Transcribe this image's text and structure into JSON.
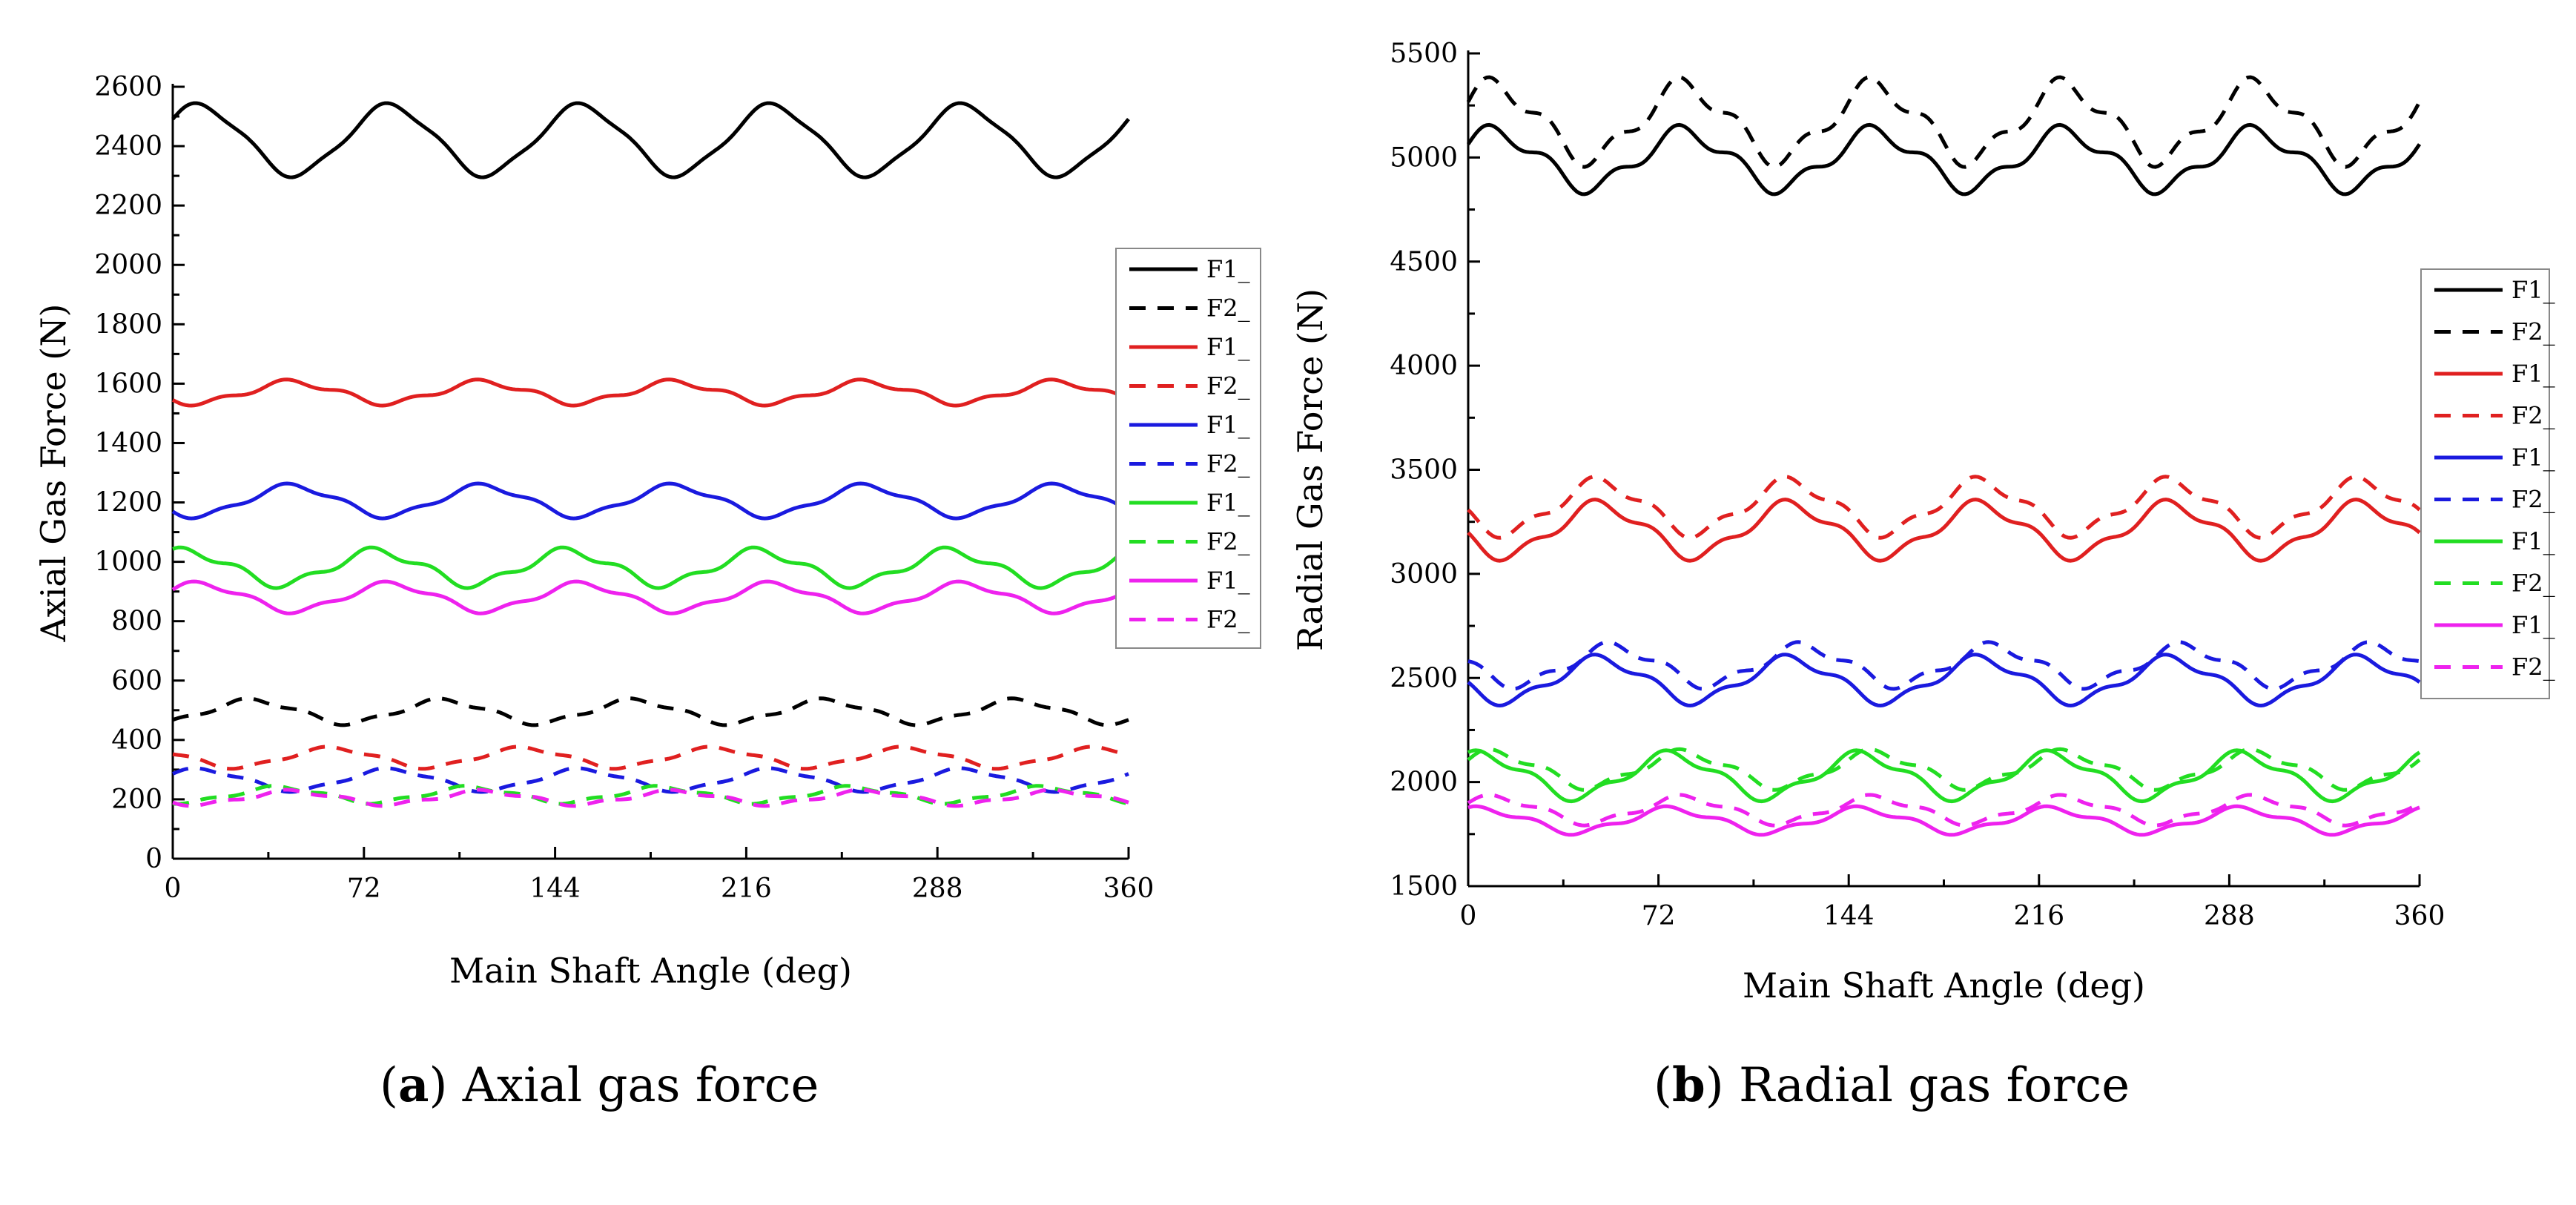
{
  "chart_data": [
    {
      "type": "line",
      "caption": {
        "letter": "a",
        "text": " Axial gas force"
      },
      "xlabel": "Main Shaft Angle (deg)",
      "ylabel": "Axial Gas Force (N)",
      "xlim": [
        0,
        360
      ],
      "ylim": [
        0,
        2600
      ],
      "xticks": [
        0,
        72,
        144,
        216,
        288,
        360
      ],
      "yticks": [
        0,
        200,
        400,
        600,
        800,
        1000,
        1200,
        1400,
        1600,
        1800,
        2000,
        2200,
        2400,
        2600
      ],
      "grid": false,
      "legend_position": "right",
      "series": [
        {
          "name": "F1_",
          "color": "#000000",
          "dash": "solid",
          "base": 2420,
          "amp": 115,
          "period": 72,
          "phase": 10,
          "ripple": 12
        },
        {
          "name": "F2_",
          "color": "#000000",
          "dash": "dashed",
          "base": 495,
          "amp": 38,
          "period": 72,
          "phase": 30,
          "ripple": 8
        },
        {
          "name": "F1_",
          "color": "#e02020",
          "dash": "solid",
          "base": 1570,
          "amp": 35,
          "period": 72,
          "phase": 45,
          "ripple": 10
        },
        {
          "name": "F2_",
          "color": "#e02020",
          "dash": "dashed",
          "base": 340,
          "amp": 32,
          "period": 72,
          "phase": 60,
          "ripple": 6
        },
        {
          "name": "F1_",
          "color": "#1a1adf",
          "dash": "solid",
          "base": 1205,
          "amp": 50,
          "period": 72,
          "phase": 45,
          "ripple": 10
        },
        {
          "name": "F2_",
          "color": "#1a1adf",
          "dash": "dashed",
          "base": 265,
          "amp": 35,
          "period": 72,
          "phase": 10,
          "ripple": 6
        },
        {
          "name": "F1_",
          "color": "#22dd22",
          "dash": "solid",
          "base": 980,
          "amp": 55,
          "period": 72,
          "phase": 5,
          "ripple": 15
        },
        {
          "name": "F2_",
          "color": "#22dd22",
          "dash": "dashed",
          "base": 215,
          "amp": 25,
          "period": 72,
          "phase": 40,
          "ripple": 6
        },
        {
          "name": "F1_",
          "color": "#ee22ee",
          "dash": "solid",
          "base": 880,
          "amp": 45,
          "period": 72,
          "phase": 10,
          "ripple": 10
        },
        {
          "name": "F2_",
          "color": "#ee22ee",
          "dash": "dashed",
          "base": 205,
          "amp": 22,
          "period": 72,
          "phase": 45,
          "ripple": 6
        }
      ]
    },
    {
      "type": "line",
      "caption": {
        "letter": "b",
        "text": " Radial gas force"
      },
      "xlabel": "Main Shaft Angle (deg)",
      "ylabel": "Radial Gas Force (N)",
      "xlim": [
        0,
        360
      ],
      "ylim": [
        1500,
        5500
      ],
      "xticks": [
        0,
        72,
        144,
        216,
        288,
        360
      ],
      "yticks": [
        1500,
        2000,
        2500,
        3000,
        3500,
        4000,
        4500,
        5000,
        5500
      ],
      "grid": false,
      "legend_position": "right",
      "series": [
        {
          "name": "F1_",
          "color": "#000000",
          "dash": "solid",
          "base": 4990,
          "amp": 130,
          "period": 72,
          "phase": 10,
          "ripple": 40
        },
        {
          "name": "F2_",
          "color": "#000000",
          "dash": "dashed",
          "base": 5170,
          "amp": 170,
          "period": 72,
          "phase": 10,
          "ripple": 50
        },
        {
          "name": "F1_",
          "color": "#e02020",
          "dash": "solid",
          "base": 3210,
          "amp": 120,
          "period": 72,
          "phase": 50,
          "ripple": 30
        },
        {
          "name": "F2_",
          "color": "#e02020",
          "dash": "dashed",
          "base": 3320,
          "amp": 120,
          "period": 72,
          "phase": 50,
          "ripple": 30
        },
        {
          "name": "F1_",
          "color": "#1a1adf",
          "dash": "solid",
          "base": 2490,
          "amp": 100,
          "period": 72,
          "phase": 50,
          "ripple": 25
        },
        {
          "name": "F2_",
          "color": "#1a1adf",
          "dash": "dashed",
          "base": 2560,
          "amp": 90,
          "period": 72,
          "phase": 55,
          "ripple": 25
        },
        {
          "name": "F1_",
          "color": "#22dd22",
          "dash": "solid",
          "base": 2030,
          "amp": 100,
          "period": 72,
          "phase": 5,
          "ripple": 25
        },
        {
          "name": "F2_",
          "color": "#22dd22",
          "dash": "dashed",
          "base": 2060,
          "amp": 80,
          "period": 72,
          "phase": 10,
          "ripple": 20
        },
        {
          "name": "F1_",
          "color": "#ee22ee",
          "dash": "solid",
          "base": 1815,
          "amp": 55,
          "period": 72,
          "phase": 5,
          "ripple": 15
        },
        {
          "name": "F2_",
          "color": "#ee22ee",
          "dash": "dashed",
          "base": 1865,
          "amp": 60,
          "period": 72,
          "phase": 10,
          "ripple": 15
        }
      ]
    }
  ]
}
